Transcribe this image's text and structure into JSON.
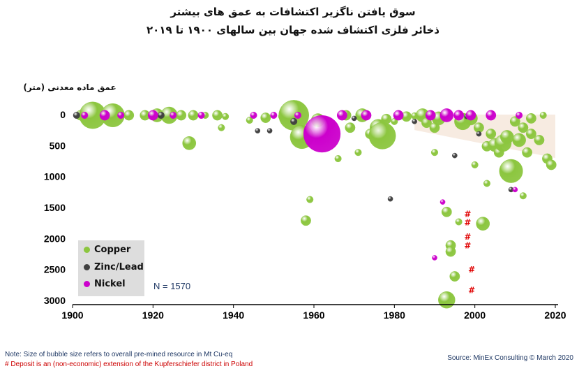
{
  "title_line1": "سوق یافتن ناگزیر اکتشافات به عمق های بیشتر",
  "title_line2": "ذخائر فلزی اکتشاف شده جهان بین سالهای ۱۹۰۰ تا ۲۰۱۹",
  "note_line1": "Note: Size of bubble size refers to overall pre-mined resource in Mt Cu-eq",
  "note_line2": "#  Deposit is an (non-economic) extension of the Kupferschiefer district in Poland",
  "source": "Source: MinEx Consulting  © March 2020",
  "colors": {
    "copper": "#8cc63f",
    "zinc_lead": "#404040",
    "nickel": "#cc00cc",
    "hash": "#e00000",
    "trend_band": "#f6e7dc"
  },
  "chart_data": {
    "type": "scatter",
    "ylabel": "عمق ماده معدنی (متر)",
    "x_ticks": [
      1900,
      1920,
      1940,
      1960,
      1980,
      2000,
      2020
    ],
    "y_ticks": [
      0,
      500,
      1000,
      1500,
      2000,
      2500,
      3000
    ],
    "xlim": [
      1900,
      2020
    ],
    "ylim": [
      0,
      3000
    ],
    "y_inverted": true,
    "grid": false,
    "legend_position": "bottom-left",
    "annotation": "N = 1570",
    "series": [
      {
        "name": "Copper",
        "points": [
          [
            1902,
            0,
            3
          ],
          [
            1905,
            0,
            8
          ],
          [
            1910,
            0,
            7
          ],
          [
            1914,
            0,
            3
          ],
          [
            1918,
            0,
            3
          ],
          [
            1921,
            0,
            4
          ],
          [
            1924,
            0,
            5
          ],
          [
            1927,
            0,
            3
          ],
          [
            1930,
            0,
            3
          ],
          [
            1933,
            0,
            2
          ],
          [
            1936,
            0,
            3
          ],
          [
            1938,
            20,
            2
          ],
          [
            1929,
            450,
            4
          ],
          [
            1937,
            200,
            2
          ],
          [
            1944,
            80,
            2
          ],
          [
            1948,
            40,
            3
          ],
          [
            1952,
            20,
            2
          ],
          [
            1955,
            0,
            9
          ],
          [
            1957,
            350,
            7
          ],
          [
            1958,
            1700,
            3
          ],
          [
            1959,
            1360,
            2
          ],
          [
            1961,
            80,
            4
          ],
          [
            1964,
            150,
            3
          ],
          [
            1966,
            700,
            2
          ],
          [
            1968,
            0,
            3
          ],
          [
            1969,
            200,
            3
          ],
          [
            1971,
            600,
            2
          ],
          [
            1972,
            0,
            4
          ],
          [
            1974,
            300,
            3
          ],
          [
            1976,
            200,
            5
          ],
          [
            1977,
            330,
            8
          ],
          [
            1978,
            60,
            3
          ],
          [
            1980,
            100,
            2
          ],
          [
            1983,
            20,
            3
          ],
          [
            1985,
            10,
            2
          ],
          [
            1987,
            0,
            4
          ],
          [
            1988,
            120,
            3
          ],
          [
            1990,
            200,
            3
          ],
          [
            1991,
            50,
            4
          ],
          [
            1993,
            1560,
            3
          ],
          [
            1994,
            2100,
            3
          ],
          [
            1994,
            2200,
            3
          ],
          [
            1995,
            2600,
            3
          ],
          [
            1993,
            2980,
            5
          ],
          [
            1996,
            1720,
            2
          ],
          [
            1997,
            100,
            5
          ],
          [
            1999,
            50,
            4
          ],
          [
            2001,
            200,
            3
          ],
          [
            2002,
            1750,
            4
          ],
          [
            2003,
            500,
            3
          ],
          [
            2004,
            300,
            3
          ],
          [
            2005,
            480,
            4
          ],
          [
            2006,
            600,
            3
          ],
          [
            2007,
            450,
            5
          ],
          [
            2008,
            350,
            4
          ],
          [
            2009,
            900,
            7
          ],
          [
            2010,
            100,
            3
          ],
          [
            2011,
            400,
            4
          ],
          [
            2012,
            200,
            3
          ],
          [
            2013,
            600,
            3
          ],
          [
            2014,
            300,
            3
          ],
          [
            2016,
            400,
            3
          ],
          [
            2018,
            700,
            3
          ],
          [
            2019,
            800,
            3
          ],
          [
            2014,
            50,
            3
          ],
          [
            2017,
            0,
            2
          ],
          [
            2003,
            1100,
            2
          ],
          [
            2012,
            1300,
            2
          ],
          [
            2000,
            800,
            2
          ],
          [
            1990,
            600,
            2
          ]
        ]
      },
      {
        "name": "Zinc/Lead",
        "points": [
          [
            1901,
            0,
            2
          ],
          [
            1922,
            0,
            2
          ],
          [
            1946,
            250,
            1.5
          ],
          [
            1949,
            250,
            1.5
          ],
          [
            1955,
            100,
            2
          ],
          [
            1979,
            1350,
            1.5
          ],
          [
            1970,
            50,
            1.5
          ],
          [
            1985,
            100,
            1.5
          ],
          [
            1995,
            650,
            1.5
          ],
          [
            2001,
            300,
            1.5
          ],
          [
            2009,
            1200,
            1.5
          ],
          [
            1998,
            20,
            1.5
          ]
        ]
      },
      {
        "name": "Nickel",
        "points": [
          [
            1903,
            0,
            2
          ],
          [
            1908,
            0,
            3
          ],
          [
            1912,
            0,
            2
          ],
          [
            1920,
            0,
            3
          ],
          [
            1925,
            0,
            2
          ],
          [
            1932,
            0,
            2
          ],
          [
            1945,
            0,
            2
          ],
          [
            1950,
            0,
            2
          ],
          [
            1956,
            0,
            2
          ],
          [
            1962,
            300,
            11
          ],
          [
            1967,
            0,
            3
          ],
          [
            1973,
            0,
            3
          ],
          [
            1981,
            0,
            3
          ],
          [
            1989,
            0,
            3
          ],
          [
            1993,
            0,
            4
          ],
          [
            1996,
            0,
            3
          ],
          [
            1999,
            0,
            3
          ],
          [
            2004,
            0,
            3
          ],
          [
            2010,
            1200,
            1.5
          ],
          [
            1992,
            1400,
            1.5
          ],
          [
            1990,
            2300,
            1.5
          ],
          [
            2011,
            0,
            2
          ]
        ]
      }
    ],
    "kupferschiefer_marks": [
      [
        1997,
        1650
      ],
      [
        1997,
        1790
      ],
      [
        1997,
        2020
      ],
      [
        1997,
        2160
      ],
      [
        1998,
        2550
      ],
      [
        1998,
        2880
      ]
    ]
  },
  "legend": [
    {
      "key": "copper",
      "label": "Copper"
    },
    {
      "key": "zinc_lead",
      "label": "Zinc/Lead"
    },
    {
      "key": "nickel",
      "label": "Nickel"
    }
  ]
}
